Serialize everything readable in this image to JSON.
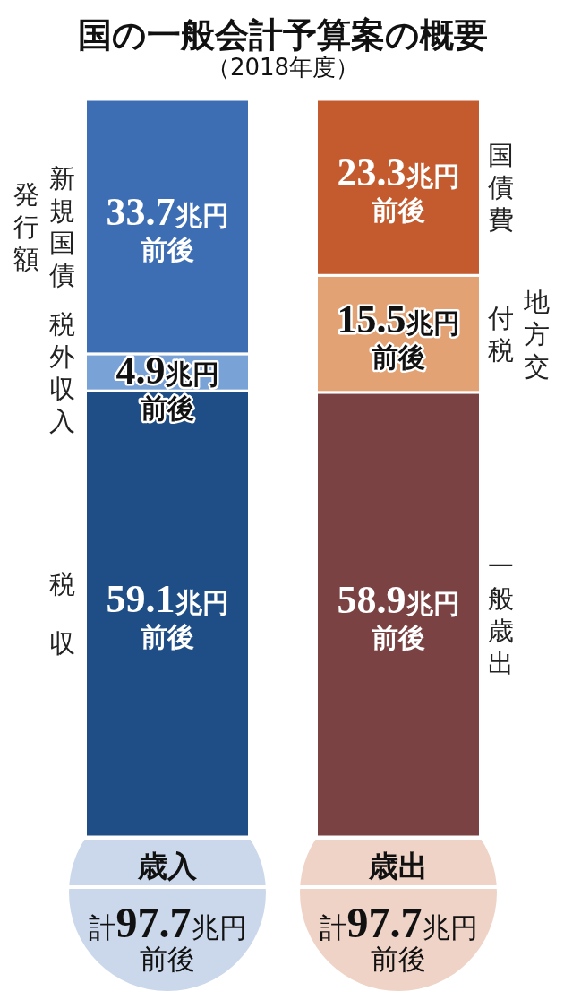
{
  "chart_data": {
    "type": "bar",
    "title": "国の一般会計予算案の概要",
    "subtitle": "（2018年度）",
    "categories": [
      "歳入",
      "歳出"
    ],
    "stacked": true,
    "series": [
      {
        "name": "税収",
        "color": "#1f4e86",
        "values": [
          59.1,
          null
        ],
        "value_labels": [
          "59.1兆円前後",
          null
        ]
      },
      {
        "name": "税外収入",
        "color": "#79a2d6",
        "values": [
          4.9,
          null
        ],
        "value_labels": [
          "4.9兆円前後",
          null
        ]
      },
      {
        "name": "新規国債発行額",
        "color": "#3d6eb4",
        "values": [
          33.7,
          null
        ],
        "value_labels": [
          "33.7兆円前後",
          null
        ]
      },
      {
        "name": "一般歳出",
        "color": "#7a4243",
        "values": [
          null,
          58.9
        ],
        "value_labels": [
          null,
          "58.9兆円前後"
        ]
      },
      {
        "name": "地方交付税",
        "color": "#e2a273",
        "values": [
          null,
          15.5
        ],
        "value_labels": [
          null,
          "15.5兆円前後"
        ]
      },
      {
        "name": "国債費",
        "color": "#c35b2f",
        "values": [
          null,
          23.3
        ],
        "value_labels": [
          null,
          "23.3兆円前後"
        ]
      }
    ],
    "totals": [
      "計97.7兆円前後",
      "計97.7兆円前後"
    ]
  }
}
